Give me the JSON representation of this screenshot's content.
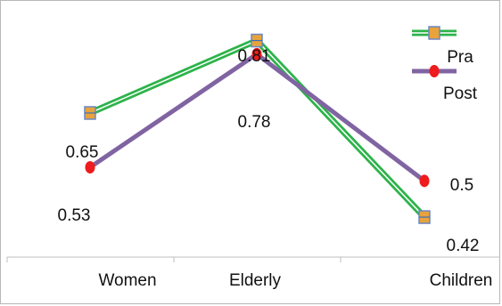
{
  "chart_data": {
    "type": "line",
    "categories": [
      "Women",
      "Elderly",
      "Children"
    ],
    "series": [
      {
        "name": "Pra",
        "values": [
          0.65,
          0.81,
          0.42
        ],
        "color": "#2db34a",
        "marker": "square",
        "marker_color": "#e8a33a",
        "data_labels": [
          "0.65",
          "0.81",
          "0.42"
        ]
      },
      {
        "name": "Post",
        "values": [
          0.53,
          0.78,
          0.5
        ],
        "color": "#8064a2",
        "marker": "circle",
        "marker_color": "#ee1c1c",
        "data_labels": [
          "0.53",
          "0.78",
          "0.5"
        ]
      }
    ],
    "grid": false,
    "legend": "top-right"
  }
}
